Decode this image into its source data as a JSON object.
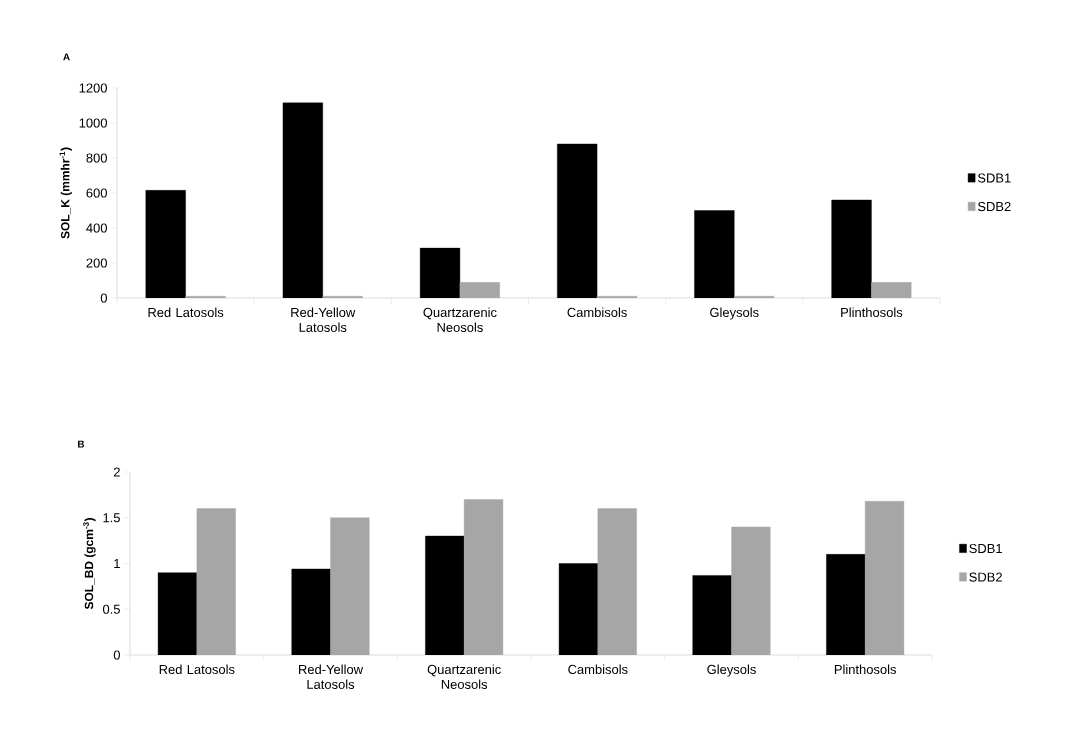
{
  "chart_data": [
    {
      "type": "bar",
      "title": "A",
      "ylabel": "SOL_K (mmhr$^{-1}$)",
      "categories": [
        "Red Latosols",
        "Red-Yellow Latosols",
        "Quartzarenic Neosols",
        "Cambisols",
        "Gleysols",
        "Plinthosols"
      ],
      "series": [
        {
          "name": "SDB1",
          "color": "#000000",
          "values": [
            615,
            1115,
            285,
            880,
            500,
            560
          ]
        },
        {
          "name": "SDB2",
          "color": "#a6a6a6",
          "values": [
            10,
            10,
            90,
            10,
            10,
            90
          ]
        }
      ],
      "ylim": [
        0,
        1200
      ],
      "yticks": [
        0,
        200,
        400,
        600,
        800,
        1000,
        1200
      ],
      "legend": "right",
      "grid": false
    },
    {
      "type": "bar",
      "title": "B",
      "ylabel": "SOL_BD (gcm$^{-3}$)",
      "categories": [
        "Red Latosols",
        "Red-Yellow Latosols",
        "Quartzarenic Neosols",
        "Cambisols",
        "Gleysols",
        "Plinthosols"
      ],
      "series": [
        {
          "name": "SDB1",
          "color": "#000000",
          "values": [
            0.9,
            0.94,
            1.3,
            1.0,
            0.87,
            1.1
          ]
        },
        {
          "name": "SDB2",
          "color": "#a6a6a6",
          "values": [
            1.6,
            1.5,
            1.7,
            1.6,
            1.4,
            1.68
          ]
        }
      ],
      "ylim": [
        0,
        2
      ],
      "yticks": [
        0,
        0.5,
        1,
        1.5,
        2
      ],
      "legend": "right",
      "grid": false
    }
  ]
}
